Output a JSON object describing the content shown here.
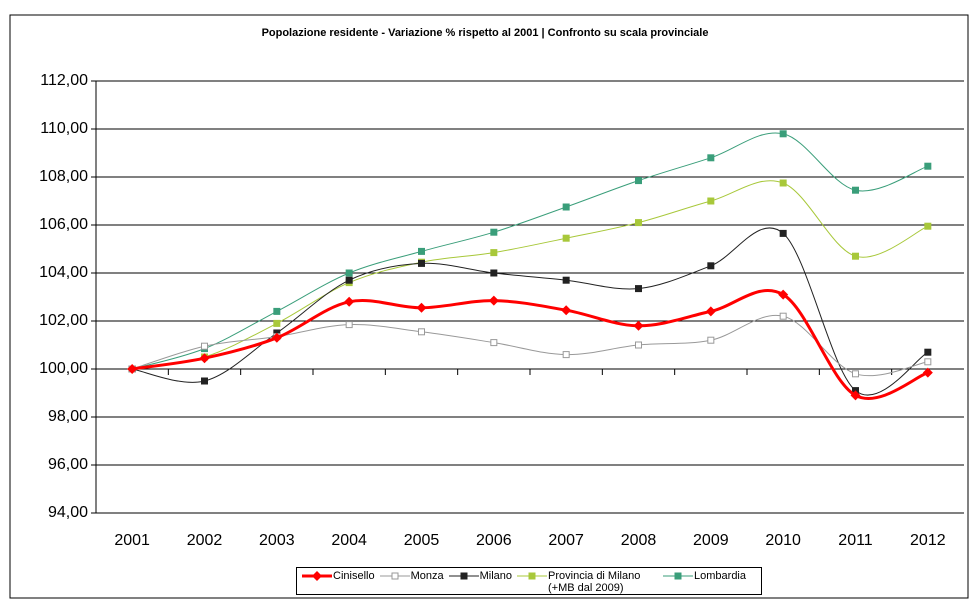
{
  "chart_data": {
    "type": "line",
    "title": "Popolazione residente - Variazione % rispetto al 2001 | Confronto su scala provinciale",
    "categories": [
      "2001",
      "2002",
      "2003",
      "2004",
      "2005",
      "2006",
      "2007",
      "2008",
      "2009",
      "2010",
      "2011",
      "2012"
    ],
    "series": [
      {
        "name": "Cinisello",
        "color": "#ff0000",
        "marker": "diamond",
        "values": [
          100,
          100.45,
          101.3,
          102.8,
          102.55,
          102.85,
          102.45,
          101.8,
          102.4,
          103.1,
          98.9,
          99.85
        ]
      },
      {
        "name": "Monza",
        "color": "#999999",
        "marker": "open-square",
        "values": [
          100,
          100.95,
          101.35,
          101.85,
          101.55,
          101.1,
          100.6,
          101.0,
          101.2,
          102.2,
          99.8,
          100.3
        ]
      },
      {
        "name": "Milano",
        "color": "#222222",
        "marker": "square",
        "values": [
          100,
          99.5,
          101.5,
          103.7,
          104.4,
          104.0,
          103.7,
          103.35,
          104.3,
          105.65,
          99.1,
          100.7
        ]
      },
      {
        "name": "Provincia di Milano (+MB dal 2009)",
        "color": "#a8c83a",
        "marker": "square",
        "values": [
          100,
          100.5,
          101.9,
          103.6,
          104.45,
          104.85,
          105.45,
          106.1,
          107.0,
          107.75,
          104.7,
          105.95
        ]
      },
      {
        "name": "Lombardia",
        "color": "#3a9e7a",
        "marker": "square",
        "values": [
          100,
          100.85,
          102.4,
          104.0,
          104.9,
          105.7,
          106.75,
          107.85,
          108.8,
          109.8,
          107.45,
          108.45
        ]
      }
    ],
    "ylim": [
      94,
      112
    ],
    "yticks": [
      {
        "value": 94,
        "label": "94,00"
      },
      {
        "value": 96,
        "label": "96,00"
      },
      {
        "value": 98,
        "label": "98,00"
      },
      {
        "value": 100,
        "label": "100,00"
      },
      {
        "value": 102,
        "label": "102,00"
      },
      {
        "value": 104,
        "label": "104,00"
      },
      {
        "value": 106,
        "label": "106,00"
      },
      {
        "value": 108,
        "label": "108,00"
      },
      {
        "value": 110,
        "label": "110,00"
      },
      {
        "value": 112,
        "label": "112,00"
      }
    ],
    "xaxis_crosses": 100,
    "grid": true,
    "smooth": true,
    "legend": "bottom"
  }
}
